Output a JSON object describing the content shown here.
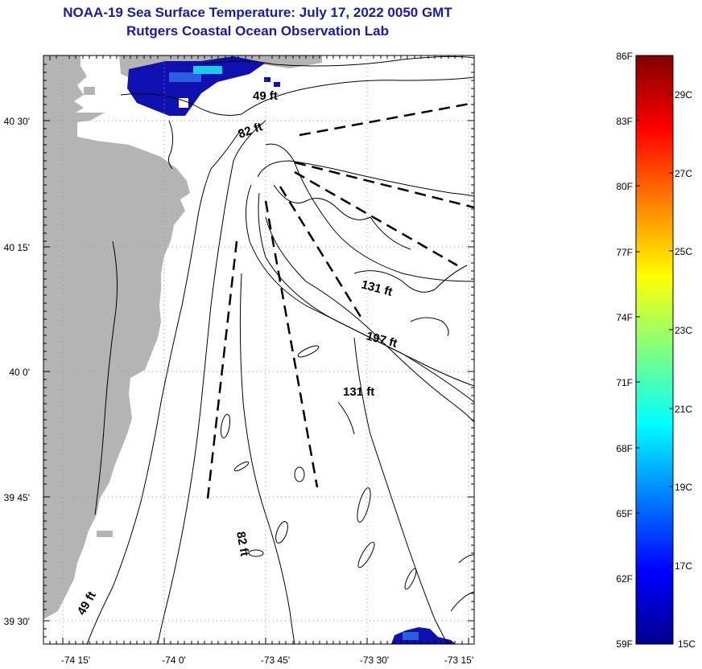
{
  "header": {
    "title_line1": "NOAA-19 Sea Surface Temperature:  July 17, 2022 0050 GMT",
    "title_line2": "Rutgers Coastal Ocean Observation Lab"
  },
  "map": {
    "lat_labels": [
      "40 30'",
      "40 15'",
      "40 0'",
      "39 45'",
      "39 30'"
    ],
    "lon_labels": [
      "-74 15'",
      "-74 0'",
      "-73 45'",
      "-73 30'",
      "-73 15'"
    ],
    "depth_labels": [
      "49 ft",
      "82 ft",
      "131 ft",
      "197 ft",
      "131 ft",
      "82 ft",
      "49 ft"
    ],
    "colors": {
      "land": "#b4b4b4",
      "water": "#ffffff",
      "contour": "#000000",
      "sst_cold": "#1010b0"
    }
  },
  "colorbar": {
    "f_labels": [
      "86F",
      "83F",
      "80F",
      "77F",
      "74F",
      "71F",
      "68F",
      "65F",
      "62F",
      "59F"
    ],
    "c_labels": [
      "29C",
      "27C",
      "25C",
      "23C",
      "21C",
      "19C",
      "17C",
      "15C"
    ],
    "range_f": [
      59,
      86
    ],
    "range_c": [
      15,
      30
    ]
  }
}
